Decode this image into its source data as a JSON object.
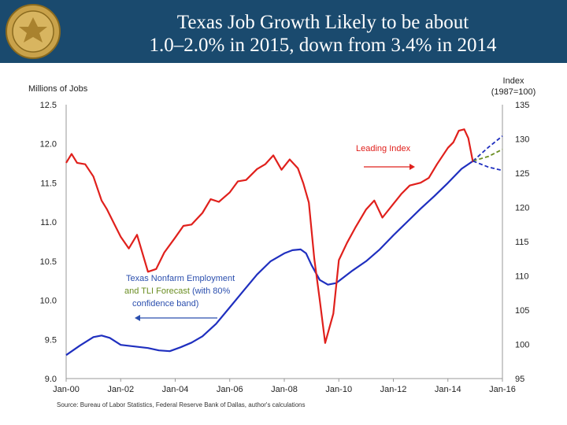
{
  "header": {
    "title_line1": "Texas Job Growth Likely to be about",
    "title_line2": "1.0–2.0% in 2015, down from 3.4% in 2014"
  },
  "colors": {
    "banner": "#1a4a6e",
    "employment": "#1f2fbf",
    "leading_index": "#e0201c",
    "upper_band": "#1f2fbf",
    "forecast_mid": "#6b8e23",
    "lower_band": "#1f2fbf",
    "annotation_blue": "#2b4fae"
  },
  "icons": {
    "seal": "federal-reserve-seal-icon"
  },
  "chart_data": {
    "type": "line",
    "left_axis": {
      "label": "Millions of Jobs",
      "ylim": [
        9.0,
        12.5
      ],
      "ticks": [
        "9.0",
        "9.5",
        "10.0",
        "10.5",
        "11.0",
        "11.5",
        "12.0",
        "12.5"
      ]
    },
    "right_axis": {
      "label_line1": "Index",
      "label_line2": "(1987=100)",
      "ylim": [
        95,
        135
      ],
      "ticks": [
        "95",
        "100",
        "105",
        "110",
        "115",
        "120",
        "125",
        "130",
        "135"
      ]
    },
    "x_axis": {
      "xlim": [
        2000.0,
        2016.0
      ],
      "ticks": [
        "Jan-00",
        "Jan-02",
        "Jan-04",
        "Jan-06",
        "Jan-08",
        "Jan-10",
        "Jan-12",
        "Jan-14",
        "Jan-16"
      ]
    },
    "grid": false,
    "annotations": {
      "leading_index": "Leading Index",
      "employment_line1": "Texas Nonfarm Employment",
      "employment_line2a": "and TLI Forecast",
      "employment_line2b": " (with 80%",
      "employment_line3": "confidence band)"
    },
    "source": "Source: Bureau of Labor Statistics, Federal Reserve Bank of Dallas, author's calculations",
    "series": [
      {
        "axis": "left",
        "x": [
          2000.0,
          2000.5,
          2001.0,
          2001.3,
          2001.6,
          2002.0,
          2002.5,
          2003.0,
          2003.4,
          2003.8,
          2004.2,
          2004.6,
          2005.0,
          2005.5,
          2006.0,
          2006.5,
          2007.0,
          2007.5,
          2008.0,
          2008.3,
          2008.6,
          2008.8,
          2009.0,
          2009.3,
          2009.6,
          2009.9,
          2010.2,
          2010.5,
          2011.0,
          2011.5,
          2012.0,
          2012.5,
          2013.0,
          2013.5,
          2014.0,
          2014.5,
          2014.92
        ],
        "values": [
          9.3,
          9.42,
          9.53,
          9.55,
          9.52,
          9.43,
          9.41,
          9.39,
          9.36,
          9.35,
          9.4,
          9.46,
          9.54,
          9.7,
          9.91,
          10.12,
          10.33,
          10.5,
          10.6,
          10.64,
          10.65,
          10.6,
          10.45,
          10.26,
          10.2,
          10.22,
          10.3,
          10.38,
          10.5,
          10.65,
          10.83,
          11.0,
          11.17,
          11.33,
          11.5,
          11.68,
          11.78
        ]
      },
      {
        "axis": "right",
        "x": [
          2000.0,
          2000.2,
          2000.4,
          2000.7,
          2001.0,
          2001.3,
          2001.5,
          2001.8,
          2002.0,
          2002.3,
          2002.6,
          2003.0,
          2003.3,
          2003.6,
          2004.0,
          2004.3,
          2004.6,
          2005.0,
          2005.3,
          2005.6,
          2006.0,
          2006.3,
          2006.6,
          2007.0,
          2007.3,
          2007.6,
          2007.9,
          2008.2,
          2008.5,
          2008.7,
          2008.9,
          2009.1,
          2009.3,
          2009.5,
          2009.8,
          2010.0,
          2010.3,
          2010.6,
          2011.0,
          2011.3,
          2011.6,
          2012.0,
          2012.3,
          2012.6,
          2013.0,
          2013.3,
          2013.6,
          2014.0,
          2014.2,
          2014.4,
          2014.6,
          2014.75,
          2014.92
        ],
        "values": [
          126.5,
          127.8,
          126.5,
          126.3,
          124.5,
          121.0,
          119.7,
          117.3,
          115.7,
          114.0,
          116.0,
          110.6,
          111.0,
          113.4,
          115.6,
          117.3,
          117.5,
          119.2,
          121.2,
          120.8,
          122.2,
          123.8,
          124.0,
          125.6,
          126.3,
          127.6,
          125.5,
          127.0,
          125.7,
          123.5,
          120.7,
          112.5,
          106.5,
          100.2,
          104.5,
          112.3,
          114.8,
          117.0,
          119.7,
          121.0,
          118.5,
          120.5,
          122.0,
          123.2,
          123.6,
          124.3,
          126.3,
          128.7,
          129.5,
          131.2,
          131.4,
          130.1,
          126.6
        ]
      },
      {
        "axis": "left",
        "x": [
          2014.92,
          2015.5,
          2016.0
        ],
        "values": [
          11.78,
          11.96,
          12.1
        ]
      },
      {
        "axis": "left",
        "x": [
          2014.92,
          2015.5,
          2016.0
        ],
        "values": [
          11.78,
          11.84,
          11.93
        ]
      },
      {
        "axis": "left",
        "x": [
          2014.92,
          2015.5,
          2016.0
        ],
        "values": [
          11.78,
          11.7,
          11.66
        ]
      }
    ]
  }
}
